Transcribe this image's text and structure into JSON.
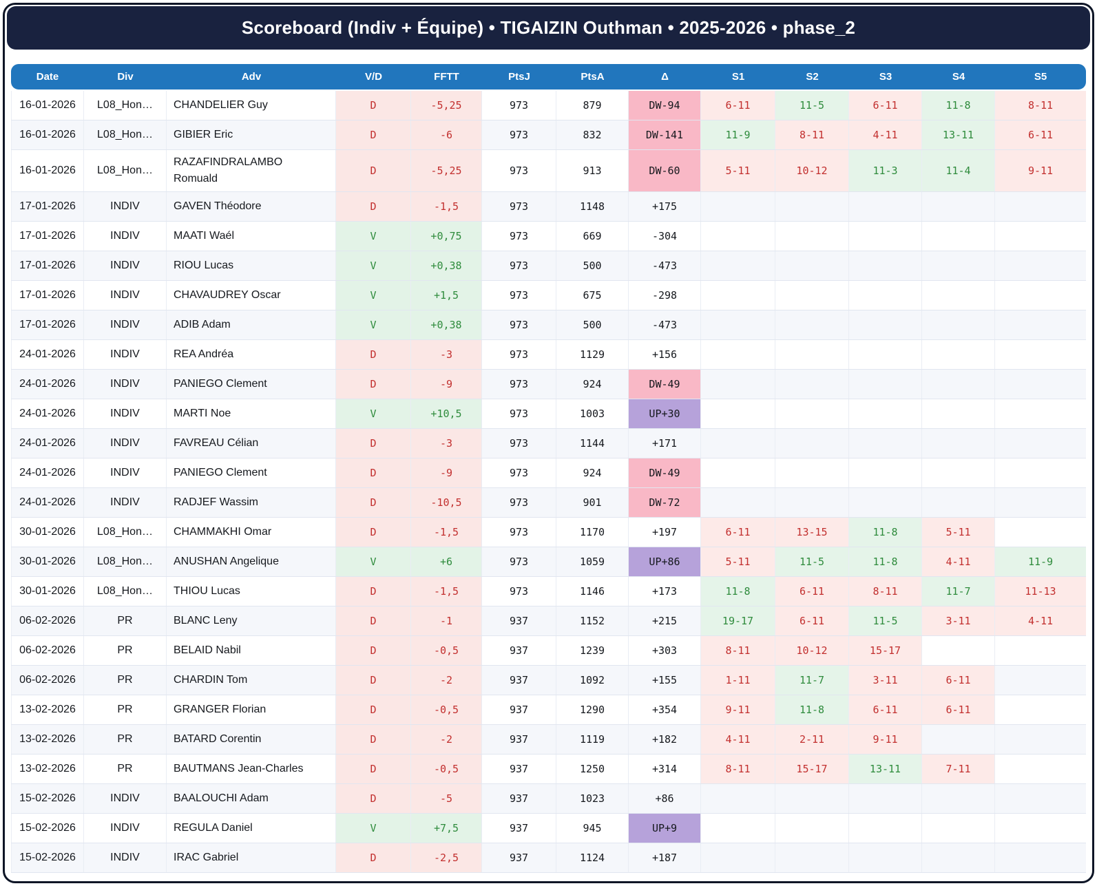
{
  "title": "Scoreboard (Indiv + Équipe) • TIGAIZIN Outhman • 2025-2026 • phase_2",
  "colors": {
    "frame_border": "#0d1526",
    "titlebar_bg": "#19223f",
    "header_bg": "#2176bd",
    "row_alt_bg": "#f5f7fb",
    "loss_bg": "#fbe7e5",
    "loss_text": "#c22f2e",
    "win_bg": "#e3f3e7",
    "win_text": "#2e8b3c",
    "delta_down_bg": "#f9b8c6",
    "delta_up_bg": "#b6a2da"
  },
  "chart_data": {
    "type": "table",
    "title": "Scoreboard (Indiv + Équipe) • TIGAIZIN Outhman • 2025-2026 • phase_2",
    "columns": [
      "Date",
      "Div",
      "Adv",
      "V/D",
      "FFTT",
      "PtsJ",
      "PtsA",
      "Δ",
      "S1",
      "S2",
      "S3",
      "S4",
      "S5"
    ],
    "rows": [
      {
        "date": "16-01-2026",
        "div": "L08_Hon…",
        "adv": "CHANDELIER Guy",
        "vd": "D",
        "fftt": "-5,25",
        "ptsj": "973",
        "ptsa": "879",
        "delta": "DW-94",
        "dtype": "dw",
        "sets": [
          "6-11",
          "11-5",
          "6-11",
          "11-8",
          "8-11"
        ],
        "setr": [
          "l",
          "w",
          "l",
          "w",
          "l"
        ]
      },
      {
        "date": "16-01-2026",
        "div": "L08_Hon…",
        "adv": "GIBIER Eric",
        "vd": "D",
        "fftt": "-6",
        "ptsj": "973",
        "ptsa": "832",
        "delta": "DW-141",
        "dtype": "dw",
        "sets": [
          "11-9",
          "8-11",
          "4-11",
          "13-11",
          "6-11"
        ],
        "setr": [
          "w",
          "l",
          "l",
          "w",
          "l"
        ]
      },
      {
        "date": "16-01-2026",
        "div": "L08_Hon…",
        "adv": "RAZAFINDRALAMBO Romuald",
        "vd": "D",
        "fftt": "-5,25",
        "ptsj": "973",
        "ptsa": "913",
        "delta": "DW-60",
        "dtype": "dw",
        "sets": [
          "5-11",
          "10-12",
          "11-3",
          "11-4",
          "9-11"
        ],
        "setr": [
          "l",
          "l",
          "w",
          "w",
          "l"
        ]
      },
      {
        "date": "17-01-2026",
        "div": "INDIV",
        "adv": "GAVEN Théodore",
        "vd": "D",
        "fftt": "-1,5",
        "ptsj": "973",
        "ptsa": "1148",
        "delta": "+175",
        "dtype": "",
        "sets": [
          "",
          "",
          "",
          "",
          ""
        ],
        "setr": [
          "",
          "",
          "",
          "",
          ""
        ]
      },
      {
        "date": "17-01-2026",
        "div": "INDIV",
        "adv": "MAATI Waél",
        "vd": "V",
        "fftt": "+0,75",
        "ptsj": "973",
        "ptsa": "669",
        "delta": "-304",
        "dtype": "",
        "sets": [
          "",
          "",
          "",
          "",
          ""
        ],
        "setr": [
          "",
          "",
          "",
          "",
          ""
        ]
      },
      {
        "date": "17-01-2026",
        "div": "INDIV",
        "adv": "RIOU Lucas",
        "vd": "V",
        "fftt": "+0,38",
        "ptsj": "973",
        "ptsa": "500",
        "delta": "-473",
        "dtype": "",
        "sets": [
          "",
          "",
          "",
          "",
          ""
        ],
        "setr": [
          "",
          "",
          "",
          "",
          ""
        ]
      },
      {
        "date": "17-01-2026",
        "div": "INDIV",
        "adv": "CHAVAUDREY Oscar",
        "vd": "V",
        "fftt": "+1,5",
        "ptsj": "973",
        "ptsa": "675",
        "delta": "-298",
        "dtype": "",
        "sets": [
          "",
          "",
          "",
          "",
          ""
        ],
        "setr": [
          "",
          "",
          "",
          "",
          ""
        ]
      },
      {
        "date": "17-01-2026",
        "div": "INDIV",
        "adv": "ADIB Adam",
        "vd": "V",
        "fftt": "+0,38",
        "ptsj": "973",
        "ptsa": "500",
        "delta": "-473",
        "dtype": "",
        "sets": [
          "",
          "",
          "",
          "",
          ""
        ],
        "setr": [
          "",
          "",
          "",
          "",
          ""
        ]
      },
      {
        "date": "24-01-2026",
        "div": "INDIV",
        "adv": "REA Andréa",
        "vd": "D",
        "fftt": "-3",
        "ptsj": "973",
        "ptsa": "1129",
        "delta": "+156",
        "dtype": "",
        "sets": [
          "",
          "",
          "",
          "",
          ""
        ],
        "setr": [
          "",
          "",
          "",
          "",
          ""
        ]
      },
      {
        "date": "24-01-2026",
        "div": "INDIV",
        "adv": "PANIEGO Clement",
        "vd": "D",
        "fftt": "-9",
        "ptsj": "973",
        "ptsa": "924",
        "delta": "DW-49",
        "dtype": "dw",
        "sets": [
          "",
          "",
          "",
          "",
          ""
        ],
        "setr": [
          "",
          "",
          "",
          "",
          ""
        ]
      },
      {
        "date": "24-01-2026",
        "div": "INDIV",
        "adv": "MARTI Noe",
        "vd": "V",
        "fftt": "+10,5",
        "ptsj": "973",
        "ptsa": "1003",
        "delta": "UP+30",
        "dtype": "up",
        "sets": [
          "",
          "",
          "",
          "",
          ""
        ],
        "setr": [
          "",
          "",
          "",
          "",
          ""
        ]
      },
      {
        "date": "24-01-2026",
        "div": "INDIV",
        "adv": "FAVREAU Célian",
        "vd": "D",
        "fftt": "-3",
        "ptsj": "973",
        "ptsa": "1144",
        "delta": "+171",
        "dtype": "",
        "sets": [
          "",
          "",
          "",
          "",
          ""
        ],
        "setr": [
          "",
          "",
          "",
          "",
          ""
        ]
      },
      {
        "date": "24-01-2026",
        "div": "INDIV",
        "adv": "PANIEGO Clement",
        "vd": "D",
        "fftt": "-9",
        "ptsj": "973",
        "ptsa": "924",
        "delta": "DW-49",
        "dtype": "dw",
        "sets": [
          "",
          "",
          "",
          "",
          ""
        ],
        "setr": [
          "",
          "",
          "",
          "",
          ""
        ]
      },
      {
        "date": "24-01-2026",
        "div": "INDIV",
        "adv": "RADJEF Wassim",
        "vd": "D",
        "fftt": "-10,5",
        "ptsj": "973",
        "ptsa": "901",
        "delta": "DW-72",
        "dtype": "dw",
        "sets": [
          "",
          "",
          "",
          "",
          ""
        ],
        "setr": [
          "",
          "",
          "",
          "",
          ""
        ]
      },
      {
        "date": "30-01-2026",
        "div": "L08_Hon…",
        "adv": "CHAMMAKHI Omar",
        "vd": "D",
        "fftt": "-1,5",
        "ptsj": "973",
        "ptsa": "1170",
        "delta": "+197",
        "dtype": "",
        "sets": [
          "6-11",
          "13-15",
          "11-8",
          "5-11",
          ""
        ],
        "setr": [
          "l",
          "l",
          "w",
          "l",
          ""
        ]
      },
      {
        "date": "30-01-2026",
        "div": "L08_Hon…",
        "adv": "ANUSHAN Angelique",
        "vd": "V",
        "fftt": "+6",
        "ptsj": "973",
        "ptsa": "1059",
        "delta": "UP+86",
        "dtype": "up",
        "sets": [
          "5-11",
          "11-5",
          "11-8",
          "4-11",
          "11-9"
        ],
        "setr": [
          "l",
          "w",
          "w",
          "l",
          "w"
        ]
      },
      {
        "date": "30-01-2026",
        "div": "L08_Hon…",
        "adv": "THIOU Lucas",
        "vd": "D",
        "fftt": "-1,5",
        "ptsj": "973",
        "ptsa": "1146",
        "delta": "+173",
        "dtype": "",
        "sets": [
          "11-8",
          "6-11",
          "8-11",
          "11-7",
          "11-13"
        ],
        "setr": [
          "w",
          "l",
          "l",
          "w",
          "l"
        ]
      },
      {
        "date": "06-02-2026",
        "div": "PR",
        "adv": "BLANC Leny",
        "vd": "D",
        "fftt": "-1",
        "ptsj": "937",
        "ptsa": "1152",
        "delta": "+215",
        "dtype": "",
        "sets": [
          "19-17",
          "6-11",
          "11-5",
          "3-11",
          "4-11"
        ],
        "setr": [
          "w",
          "l",
          "w",
          "l",
          "l"
        ]
      },
      {
        "date": "06-02-2026",
        "div": "PR",
        "adv": "BELAID Nabil",
        "vd": "D",
        "fftt": "-0,5",
        "ptsj": "937",
        "ptsa": "1239",
        "delta": "+303",
        "dtype": "",
        "sets": [
          "8-11",
          "10-12",
          "15-17",
          "",
          ""
        ],
        "setr": [
          "l",
          "l",
          "l",
          "",
          ""
        ]
      },
      {
        "date": "06-02-2026",
        "div": "PR",
        "adv": "CHARDIN Tom",
        "vd": "D",
        "fftt": "-2",
        "ptsj": "937",
        "ptsa": "1092",
        "delta": "+155",
        "dtype": "",
        "sets": [
          "1-11",
          "11-7",
          "3-11",
          "6-11",
          ""
        ],
        "setr": [
          "l",
          "w",
          "l",
          "l",
          ""
        ]
      },
      {
        "date": "13-02-2026",
        "div": "PR",
        "adv": "GRANGER Florian",
        "vd": "D",
        "fftt": "-0,5",
        "ptsj": "937",
        "ptsa": "1290",
        "delta": "+354",
        "dtype": "",
        "sets": [
          "9-11",
          "11-8",
          "6-11",
          "6-11",
          ""
        ],
        "setr": [
          "l",
          "w",
          "l",
          "l",
          ""
        ]
      },
      {
        "date": "13-02-2026",
        "div": "PR",
        "adv": "BATARD Corentin",
        "vd": "D",
        "fftt": "-2",
        "ptsj": "937",
        "ptsa": "1119",
        "delta": "+182",
        "dtype": "",
        "sets": [
          "4-11",
          "2-11",
          "9-11",
          "",
          ""
        ],
        "setr": [
          "l",
          "l",
          "l",
          "",
          ""
        ]
      },
      {
        "date": "13-02-2026",
        "div": "PR",
        "adv": "BAUTMANS Jean-Charles",
        "vd": "D",
        "fftt": "-0,5",
        "ptsj": "937",
        "ptsa": "1250",
        "delta": "+314",
        "dtype": "",
        "sets": [
          "8-11",
          "15-17",
          "13-11",
          "7-11",
          ""
        ],
        "setr": [
          "l",
          "l",
          "w",
          "l",
          ""
        ]
      },
      {
        "date": "15-02-2026",
        "div": "INDIV",
        "adv": "BAALOUCHI Adam",
        "vd": "D",
        "fftt": "-5",
        "ptsj": "937",
        "ptsa": "1023",
        "delta": "+86",
        "dtype": "",
        "sets": [
          "",
          "",
          "",
          "",
          ""
        ],
        "setr": [
          "",
          "",
          "",
          "",
          ""
        ]
      },
      {
        "date": "15-02-2026",
        "div": "INDIV",
        "adv": "REGULA Daniel",
        "vd": "V",
        "fftt": "+7,5",
        "ptsj": "937",
        "ptsa": "945",
        "delta": "UP+9",
        "dtype": "up",
        "sets": [
          "",
          "",
          "",
          "",
          ""
        ],
        "setr": [
          "",
          "",
          "",
          "",
          ""
        ]
      },
      {
        "date": "15-02-2026",
        "div": "INDIV",
        "adv": "IRAC Gabriel",
        "vd": "D",
        "fftt": "-2,5",
        "ptsj": "937",
        "ptsa": "1124",
        "delta": "+187",
        "dtype": "",
        "sets": [
          "",
          "",
          "",
          "",
          ""
        ],
        "setr": [
          "",
          "",
          "",
          "",
          ""
        ]
      }
    ]
  }
}
